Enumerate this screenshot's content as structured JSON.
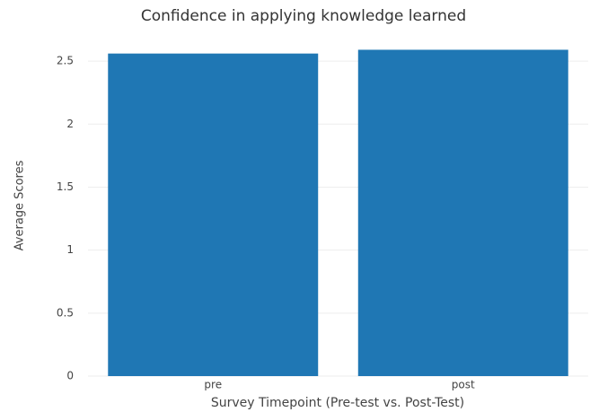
{
  "chart_data": {
    "type": "bar",
    "title": "Confidence in applying knowledge learned",
    "x_label": "Survey Timepoint (Pre-test vs. Post-Test)",
    "y_label": "Average Scores",
    "categories": [
      "pre",
      "post"
    ],
    "values": [
      2.56,
      2.59
    ],
    "color": "#1f77b4",
    "ylim": [
      0,
      2.7
    ],
    "yticks": [
      0,
      0.5,
      1,
      1.5,
      2,
      2.5
    ],
    "grid": true
  }
}
